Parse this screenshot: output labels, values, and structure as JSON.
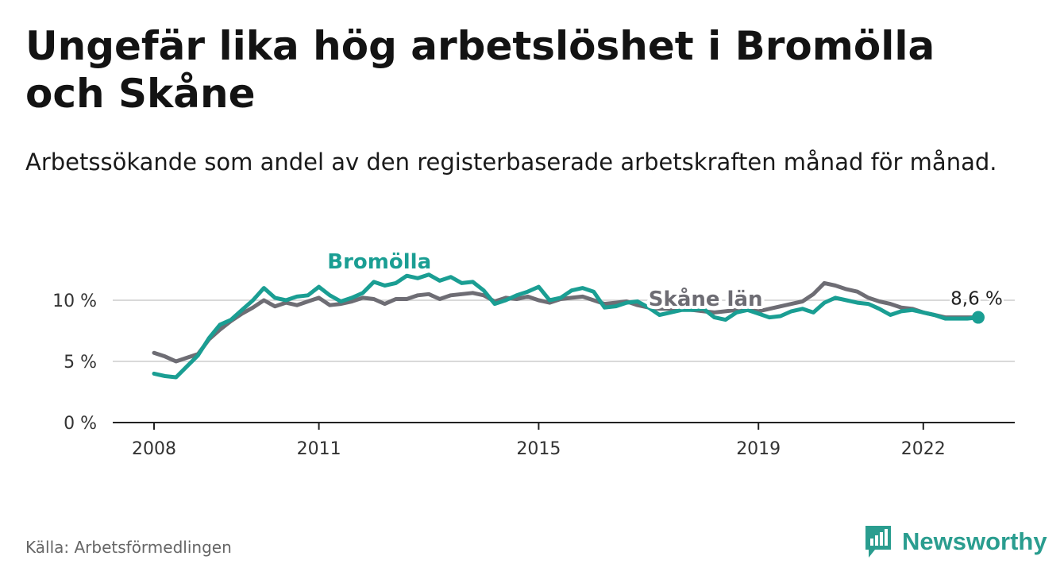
{
  "title": "Ungefär lika hög arbetslöshet i Bromölla och Skåne",
  "subtitle": "Arbetssökande som andel av den registerbaserade arbetskraften månad för månad.",
  "source": "Källa: Arbetsförmedlingen",
  "brand": "Newsworthy",
  "colors": {
    "bromolla": "#1a9e93",
    "skane": "#6e6d74",
    "grid": "#d9d9d9",
    "axis": "#222222",
    "brand": "#2a9d8f"
  },
  "chart_data": {
    "type": "line",
    "ylim": [
      0,
      12
    ],
    "xlim": [
      2008,
      2023.5
    ],
    "y_ticks": [
      {
        "value": 0,
        "label": "0 %"
      },
      {
        "value": 5,
        "label": "5 %"
      },
      {
        "value": 10,
        "label": "10 %"
      }
    ],
    "x_ticks": [
      {
        "value": 2008,
        "label": "2008"
      },
      {
        "value": 2011,
        "label": "2011"
      },
      {
        "value": 2015,
        "label": "2015"
      },
      {
        "value": 2019,
        "label": "2019"
      },
      {
        "value": 2022,
        "label": "2022"
      }
    ],
    "series": [
      {
        "name": "Skåne län",
        "label": "Skåne län",
        "x": [
          2008.0,
          2008.2,
          2008.4,
          2008.6,
          2008.8,
          2009.0,
          2009.2,
          2009.4,
          2009.6,
          2009.8,
          2010.0,
          2010.2,
          2010.4,
          2010.6,
          2010.8,
          2011.0,
          2011.2,
          2011.4,
          2011.6,
          2011.8,
          2012.0,
          2012.2,
          2012.4,
          2012.6,
          2012.8,
          2013.0,
          2013.2,
          2013.4,
          2013.6,
          2013.8,
          2014.0,
          2014.2,
          2014.4,
          2014.6,
          2014.8,
          2015.0,
          2015.2,
          2015.4,
          2015.6,
          2015.8,
          2016.0,
          2016.2,
          2016.4,
          2016.6,
          2016.8,
          2017.0,
          2017.2,
          2017.4,
          2017.6,
          2017.8,
          2018.0,
          2018.2,
          2018.4,
          2018.6,
          2018.8,
          2019.0,
          2019.2,
          2019.4,
          2019.6,
          2019.8,
          2020.0,
          2020.2,
          2020.4,
          2020.6,
          2020.8,
          2021.0,
          2021.2,
          2021.4,
          2021.6,
          2021.8,
          2022.0,
          2022.2,
          2022.4,
          2022.6,
          2022.8,
          2023.0
        ],
        "values": [
          5.7,
          5.4,
          5.0,
          5.3,
          5.6,
          6.8,
          7.6,
          8.3,
          8.9,
          9.4,
          10.0,
          9.5,
          9.8,
          9.6,
          9.9,
          10.2,
          9.6,
          9.7,
          9.9,
          10.2,
          10.1,
          9.7,
          10.1,
          10.1,
          10.4,
          10.5,
          10.1,
          10.4,
          10.5,
          10.6,
          10.4,
          9.9,
          10.2,
          10.1,
          10.3,
          10.0,
          9.8,
          10.1,
          10.2,
          10.3,
          10.0,
          9.7,
          9.8,
          9.9,
          9.6,
          9.4,
          9.3,
          9.3,
          9.3,
          9.2,
          9.1,
          9.0,
          9.1,
          9.2,
          9.2,
          9.1,
          9.3,
          9.5,
          9.7,
          9.9,
          10.5,
          11.4,
          11.2,
          10.9,
          10.7,
          10.2,
          9.9,
          9.7,
          9.4,
          9.3,
          9.0,
          8.8,
          8.6,
          8.6,
          8.6,
          8.6
        ]
      },
      {
        "name": "Bromölla",
        "label": "Bromölla",
        "x": [
          2008.0,
          2008.2,
          2008.4,
          2008.6,
          2008.8,
          2009.0,
          2009.2,
          2009.4,
          2009.6,
          2009.8,
          2010.0,
          2010.2,
          2010.4,
          2010.6,
          2010.8,
          2011.0,
          2011.2,
          2011.4,
          2011.6,
          2011.8,
          2012.0,
          2012.2,
          2012.4,
          2012.6,
          2012.8,
          2013.0,
          2013.2,
          2013.4,
          2013.6,
          2013.8,
          2014.0,
          2014.2,
          2014.4,
          2014.6,
          2014.8,
          2015.0,
          2015.2,
          2015.4,
          2015.6,
          2015.8,
          2016.0,
          2016.2,
          2016.4,
          2016.6,
          2016.8,
          2017.0,
          2017.2,
          2017.4,
          2017.6,
          2017.8,
          2018.0,
          2018.2,
          2018.4,
          2018.6,
          2018.8,
          2019.0,
          2019.2,
          2019.4,
          2019.6,
          2019.8,
          2020.0,
          2020.2,
          2020.4,
          2020.6,
          2020.8,
          2021.0,
          2021.2,
          2021.4,
          2021.6,
          2021.8,
          2022.0,
          2022.2,
          2022.4,
          2022.6,
          2022.8,
          2023.0
        ],
        "values": [
          4.0,
          3.8,
          3.7,
          4.6,
          5.5,
          6.9,
          8.0,
          8.4,
          9.2,
          10.0,
          11.0,
          10.2,
          10.0,
          10.3,
          10.4,
          11.1,
          10.4,
          9.9,
          10.2,
          10.6,
          11.5,
          11.2,
          11.4,
          12.0,
          11.8,
          12.1,
          11.6,
          11.9,
          11.4,
          11.5,
          10.8,
          9.7,
          10.0,
          10.4,
          10.7,
          11.1,
          10.0,
          10.2,
          10.8,
          11.0,
          10.7,
          9.4,
          9.5,
          9.8,
          9.9,
          9.4,
          8.8,
          9.0,
          9.2,
          9.2,
          9.3,
          8.6,
          8.4,
          9.0,
          9.2,
          8.9,
          8.6,
          8.7,
          9.1,
          9.3,
          9.0,
          9.8,
          10.2,
          10.0,
          9.8,
          9.7,
          9.3,
          8.8,
          9.1,
          9.2,
          9.0,
          8.8,
          8.5,
          8.5,
          8.5,
          8.6
        ]
      }
    ],
    "end_label": "8,6 %"
  }
}
